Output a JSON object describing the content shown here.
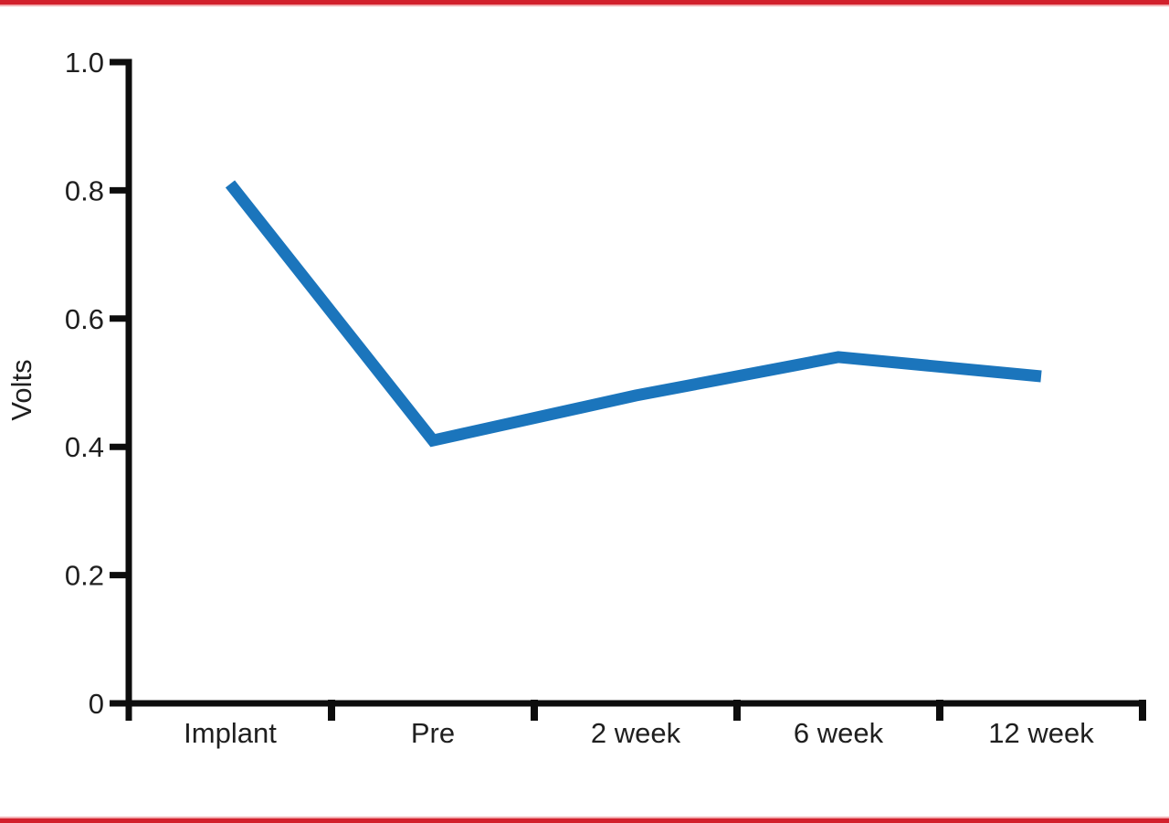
{
  "page": {
    "background": "#ffffff",
    "border_red": "#d2202c",
    "border_light": "#f3aeb2"
  },
  "chart_data": {
    "type": "line",
    "categories": [
      "Implant",
      "Pre",
      "2 week",
      "6 week",
      "12 week"
    ],
    "series": [
      {
        "name": "Volts",
        "color": "#1b75bc",
        "values": [
          0.81,
          0.41,
          0.48,
          0.54,
          0.51
        ]
      }
    ],
    "ylabel": "Volts",
    "xlabel": "",
    "ylim": [
      0,
      1.0
    ],
    "yticks": [
      0,
      0.2,
      0.4,
      0.6,
      0.8,
      1.0
    ],
    "ytick_labels": [
      "0",
      "0.2",
      "0.4",
      "0.6",
      "0.8",
      "1.0"
    ],
    "grid": false,
    "legend": "none",
    "axis_color": "#0d0d0d",
    "text_color": "#1f1f1f"
  }
}
